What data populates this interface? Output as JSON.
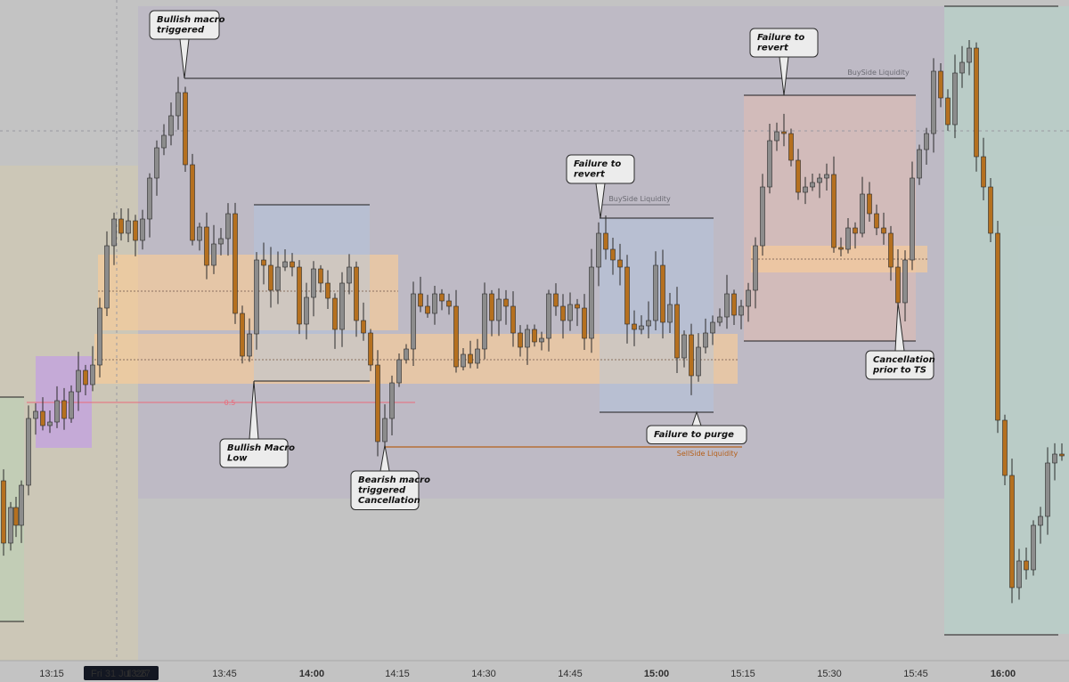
{
  "chart_data": {
    "type": "candlestick",
    "x_axis": {
      "ticks": [
        "13:15",
        "13:27",
        "13:45",
        "14:00",
        "14:15",
        "14:30",
        "14:45",
        "15:00",
        "15:15",
        "15:30",
        "15:45",
        "16:00"
      ],
      "bold_ticks": [
        "14:00",
        "15:00",
        "16:00"
      ],
      "date_badge": "Fri 31 Jul '26"
    },
    "fib_label": "0.5",
    "colors": {
      "up": "#8c8c8c",
      "down": "#b5701f",
      "wick": "#2b2b2b",
      "grey_zone": "rgba(185,175,200,0.45)",
      "fvg": "rgba(250,205,150,0.65)",
      "blue_box": "rgba(175,200,230,0.40)",
      "pink_box": "rgba(240,190,170,0.40)",
      "purple_box": "rgba(195,160,225,0.75)",
      "green_zone": "rgba(175,215,205,0.45)",
      "fib_line": "#ea6b7a",
      "sellside": "#b5601a"
    },
    "liquidity_labels": [
      {
        "key": "bsl1",
        "text": "BuySide Liquidity",
        "color": "#6a6a72"
      },
      {
        "key": "bsl2",
        "text": "BuySide Liquidity",
        "color": "#6a6a72"
      },
      {
        "key": "ssl",
        "text": "SellSide Liquidity",
        "color": "#b5601a"
      }
    ],
    "annotations": [
      {
        "key": "a1",
        "lines": [
          "Bullish macro",
          "triggered"
        ]
      },
      {
        "key": "a2",
        "lines": [
          "Bullish Macro",
          "Low"
        ]
      },
      {
        "key": "a3",
        "lines": [
          "Bearish macro",
          "triggered",
          "Cancellation"
        ]
      },
      {
        "key": "a4",
        "lines": [
          "Failure to",
          "revert"
        ]
      },
      {
        "key": "a5",
        "lines": [
          "Failure to purge"
        ]
      },
      {
        "key": "a6",
        "lines": [
          "Failure to",
          "revert"
        ]
      },
      {
        "key": "a7",
        "lines": [
          "Cancellation",
          "prior to TS"
        ]
      }
    ]
  }
}
